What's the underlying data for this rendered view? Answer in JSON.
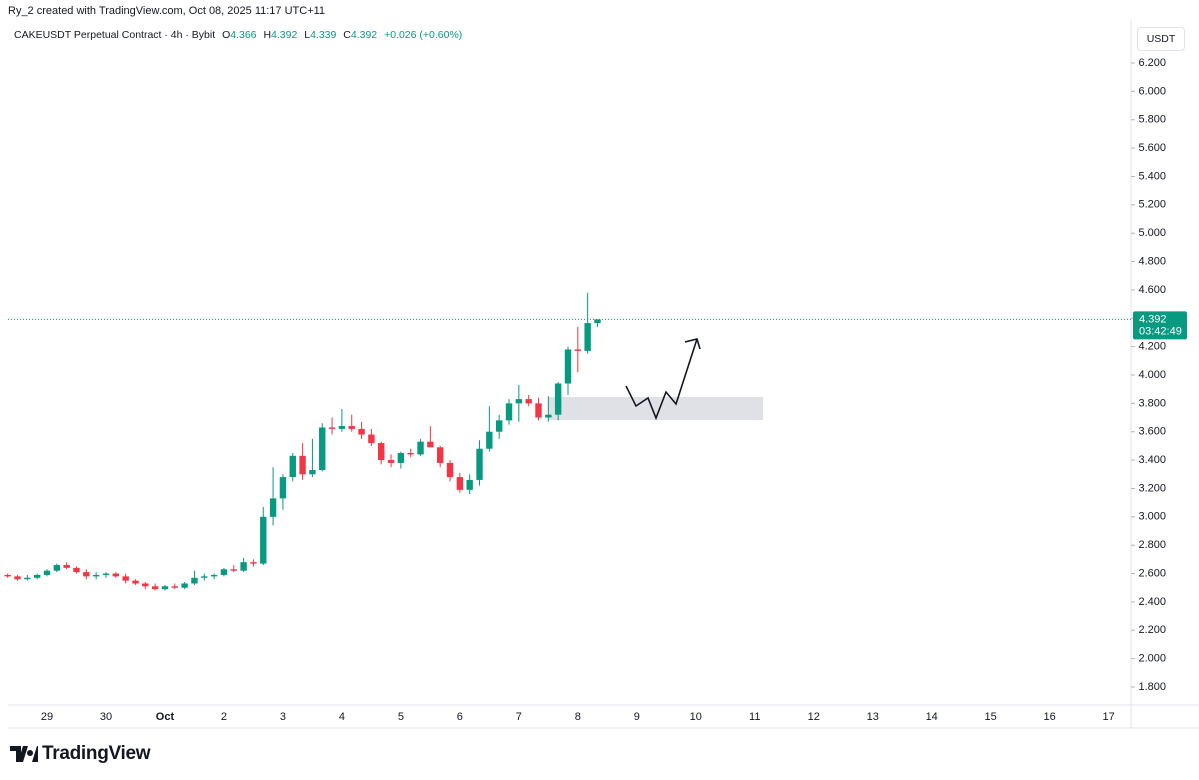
{
  "header": {
    "credit": "Ry_2 created with TradingView.com, Oct 08, 2025 11:17 UTC+11",
    "logo": "TradingView"
  },
  "chart_data": {
    "type": "candlestick",
    "title": "CAKEUSDT Perpetual Contract · 4h · Bybit",
    "legend_labels": {
      "open": "O",
      "high": "H",
      "low": "L",
      "close": "C"
    },
    "change": "+0.026 (+0.60%)",
    "currency": "USDT",
    "countdown": "03:42:49",
    "up_color": "#089981",
    "down_color": "#f23645",
    "categories": [
      null,
      null,
      null,
      null,
      "29",
      null,
      null,
      null,
      null,
      null,
      "30",
      null,
      null,
      null,
      null,
      null,
      "Oct",
      null,
      null,
      null,
      null,
      null,
      "2",
      null,
      null,
      null,
      null,
      null,
      "3",
      null,
      null,
      null,
      null,
      null,
      "4",
      null,
      null,
      null,
      null,
      null,
      "5",
      null,
      null,
      null,
      null,
      null,
      "6",
      null,
      null,
      null,
      null,
      null,
      "7",
      null,
      null,
      null,
      null,
      null,
      "8",
      null,
      null
    ],
    "future_categories": [
      "9",
      "10",
      "11",
      "12",
      "13",
      "14",
      "15",
      "16",
      "17"
    ],
    "open": [
      2.59,
      2.58,
      2.56,
      2.57,
      2.59,
      2.62,
      2.66,
      2.64,
      2.61,
      2.58,
      2.59,
      2.6,
      2.58,
      2.55,
      2.53,
      2.51,
      2.49,
      2.51,
      2.5,
      2.53,
      2.57,
      2.58,
      2.59,
      2.63,
      2.62,
      2.68,
      2.67,
      3.0,
      3.13,
      3.28,
      3.43,
      3.3,
      3.33,
      3.63,
      3.62,
      3.64,
      3.62,
      3.58,
      3.52,
      3.4,
      3.38,
      3.45,
      3.44,
      3.53,
      3.49,
      3.38,
      3.28,
      3.19,
      3.26,
      3.48,
      3.6,
      3.68,
      3.8,
      3.83,
      3.8,
      3.7,
      3.72,
      3.94,
      4.18,
      4.17,
      4.366
    ],
    "high": [
      2.6,
      2.59,
      2.59,
      2.6,
      2.63,
      2.67,
      2.68,
      2.65,
      2.63,
      2.61,
      2.61,
      2.61,
      2.6,
      2.56,
      2.54,
      2.53,
      2.52,
      2.53,
      2.54,
      2.62,
      2.6,
      2.6,
      2.64,
      2.66,
      2.71,
      2.7,
      3.07,
      3.35,
      3.3,
      3.45,
      3.52,
      3.55,
      3.66,
      3.7,
      3.76,
      3.72,
      3.67,
      3.62,
      3.53,
      3.44,
      3.46,
      3.48,
      3.55,
      3.64,
      3.5,
      3.4,
      3.31,
      3.3,
      3.54,
      3.78,
      3.72,
      3.83,
      3.93,
      3.86,
      3.84,
      3.85,
      3.95,
      4.2,
      4.34,
      4.58,
      4.392
    ],
    "low": [
      2.57,
      2.55,
      2.55,
      2.56,
      2.58,
      2.61,
      2.63,
      2.6,
      2.56,
      2.56,
      2.57,
      2.57,
      2.53,
      2.52,
      2.49,
      2.48,
      2.48,
      2.49,
      2.49,
      2.52,
      2.55,
      2.56,
      2.58,
      2.61,
      2.61,
      2.65,
      2.66,
      2.94,
      3.05,
      3.25,
      3.26,
      3.28,
      3.32,
      3.58,
      3.6,
      3.6,
      3.55,
      3.5,
      3.37,
      3.35,
      3.34,
      3.42,
      3.43,
      3.5,
      3.35,
      3.25,
      3.17,
      3.16,
      3.22,
      3.46,
      3.55,
      3.65,
      3.67,
      3.78,
      3.68,
      3.67,
      3.68,
      3.86,
      4.02,
      4.15,
      4.339
    ],
    "close": [
      2.58,
      2.56,
      2.57,
      2.59,
      2.62,
      2.66,
      2.64,
      2.61,
      2.58,
      2.59,
      2.6,
      2.58,
      2.55,
      2.53,
      2.51,
      2.49,
      2.51,
      2.5,
      2.53,
      2.57,
      2.58,
      2.59,
      2.63,
      2.62,
      2.68,
      2.67,
      3.0,
      3.13,
      3.28,
      3.43,
      3.3,
      3.33,
      3.63,
      3.62,
      3.64,
      3.62,
      3.58,
      3.52,
      3.4,
      3.38,
      3.45,
      3.44,
      3.53,
      3.49,
      3.38,
      3.28,
      3.19,
      3.26,
      3.48,
      3.6,
      3.68,
      3.8,
      3.83,
      3.8,
      3.7,
      3.72,
      3.94,
      4.18,
      4.17,
      4.366,
      4.392
    ],
    "ylim": [
      1.673,
      6.468
    ],
    "yticks": [
      {
        "value": 1.8,
        "label": "1.800"
      },
      {
        "value": 2.0,
        "label": "2.000"
      },
      {
        "value": 2.2,
        "label": "2.200"
      },
      {
        "value": 2.4,
        "label": "2.400"
      },
      {
        "value": 2.6,
        "label": "2.600"
      },
      {
        "value": 2.8,
        "label": "2.800"
      },
      {
        "value": 3.0,
        "label": "3.000"
      },
      {
        "value": 3.2,
        "label": "3.200"
      },
      {
        "value": 3.4,
        "label": "3.400"
      },
      {
        "value": 3.6,
        "label": "3.600"
      },
      {
        "value": 3.8,
        "label": "3.800"
      },
      {
        "value": 4.0,
        "label": "4.000"
      },
      {
        "value": 4.2,
        "label": "4.200"
      },
      {
        "value": 4.4,
        "label": "4.400"
      },
      {
        "value": 4.6,
        "label": "4.600"
      },
      {
        "value": 4.8,
        "label": "4.800"
      },
      {
        "value": 5.0,
        "label": "5.000"
      },
      {
        "value": 5.2,
        "label": "5.200"
      },
      {
        "value": 5.4,
        "label": "5.400"
      },
      {
        "value": 5.6,
        "label": "5.600"
      },
      {
        "value": 5.8,
        "label": "5.800"
      },
      {
        "value": 6.0,
        "label": "6.000"
      },
      {
        "value": 6.2,
        "label": "6.200"
      }
    ],
    "grid": false
  }
}
